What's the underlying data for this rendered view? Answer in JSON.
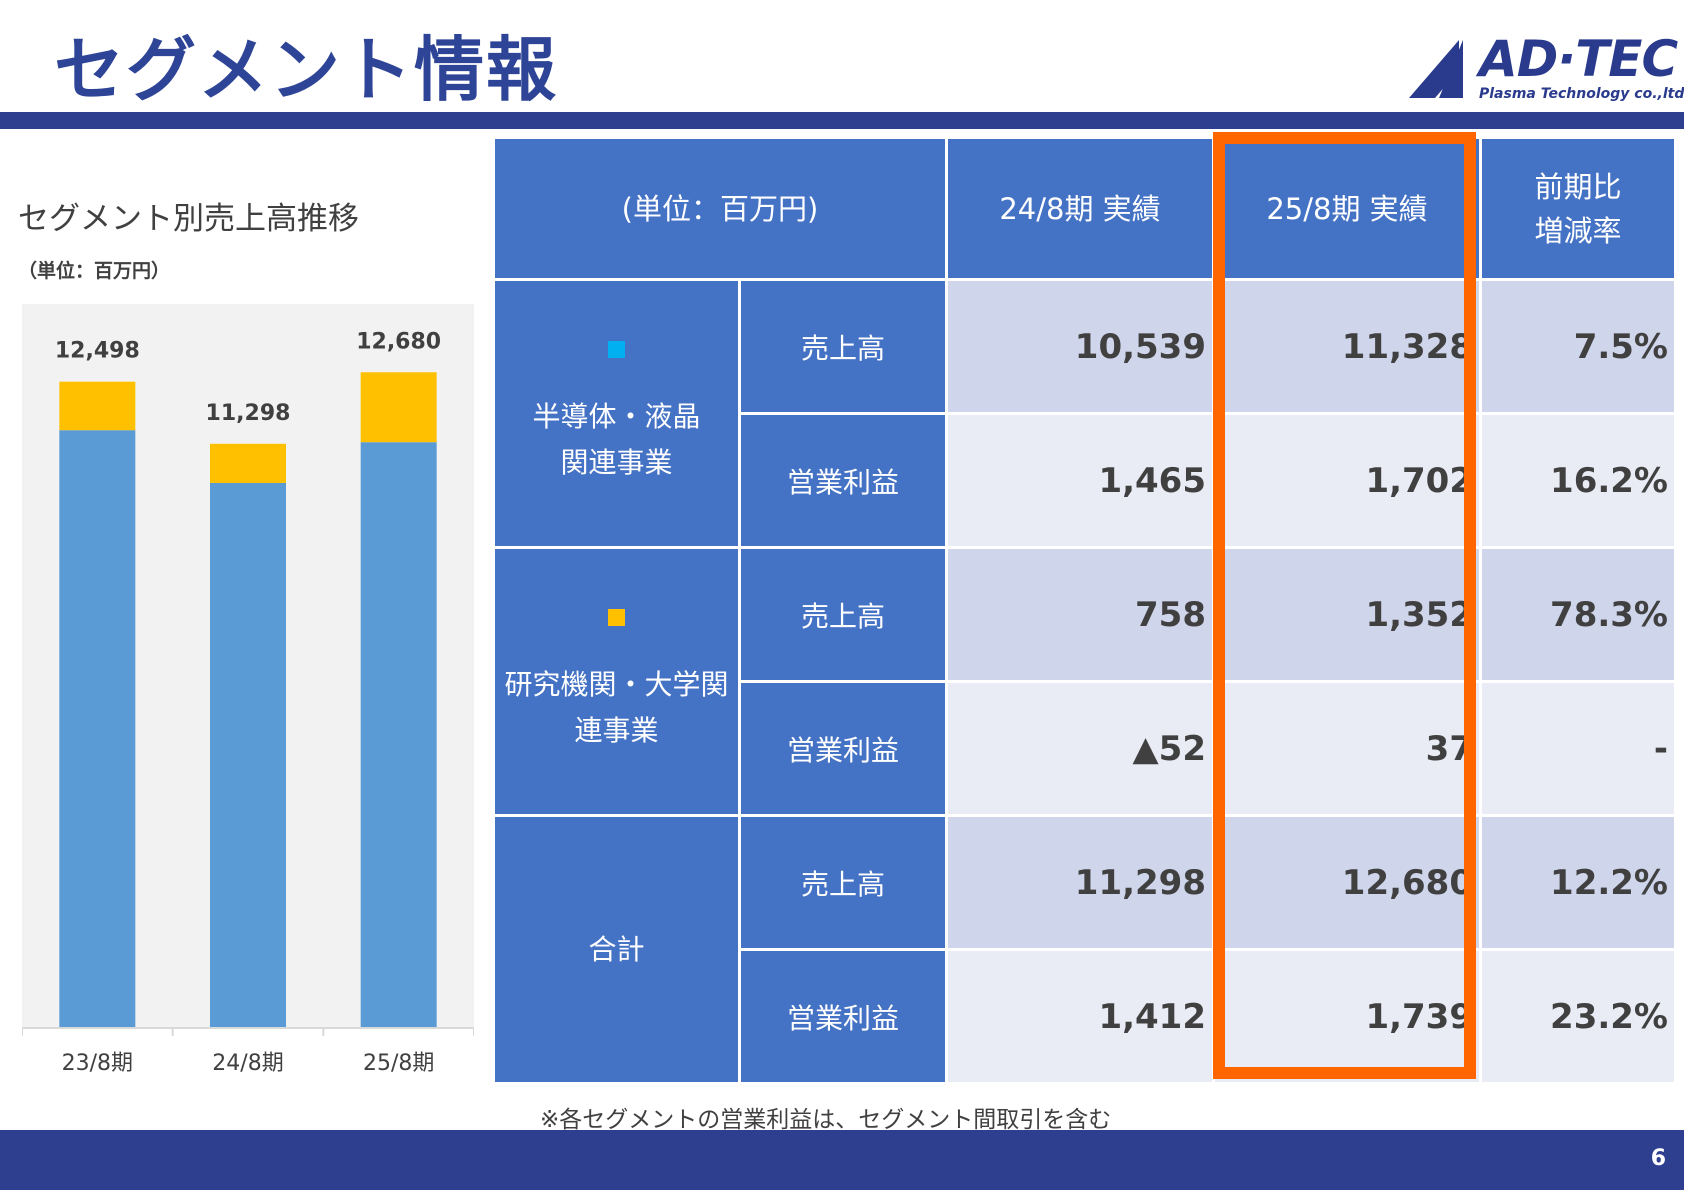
{
  "page_title": "セグメント情報",
  "logo": {
    "wordmark": "AD·TEC",
    "subline": "Plasma Technology co.,ltd."
  },
  "chart_data": {
    "type": "bar",
    "stacked": true,
    "title": "セグメント別売上高推移",
    "unit_label": "（単位：百万円）",
    "categories": [
      "23/8期",
      "24/8期",
      "25/8期"
    ],
    "series": [
      {
        "values": [
          11560,
          10539,
          11328
        ],
        "color": "#5b9bd5"
      },
      {
        "values": [
          938,
          758,
          1352
        ],
        "color": "#ffc000"
      }
    ],
    "totals": [
      "12,498",
      "11,298",
      "12,680"
    ],
    "ylim": [
      0,
      14000
    ],
    "grid": false
  },
  "table": {
    "unit_header": "(単位：百万円)",
    "col_prev": "24/8期 実績",
    "col_curr": "25/8期 実績",
    "col_change_line1": "前期比",
    "col_change_line2": "増減率",
    "segments": [
      {
        "square_color": "#00b0f0",
        "name_line1": "半導体・液晶",
        "name_line2": "関連事業",
        "rows": [
          {
            "metric": "売上高",
            "prev": "10,539",
            "curr": "11,328",
            "change": "7.5%"
          },
          {
            "metric": "営業利益",
            "prev": "1,465",
            "curr": "1,702",
            "change": "16.2%"
          }
        ]
      },
      {
        "square_color": "#ffc000",
        "name_line1": "研究機関・大学関",
        "name_line2": "連事業",
        "rows": [
          {
            "metric": "売上高",
            "prev": "758",
            "curr": "1,352",
            "change": "78.3%"
          },
          {
            "metric": "営業利益",
            "prev": "▲52",
            "curr": "37",
            "change": "-"
          }
        ]
      },
      {
        "name_line1": "合計",
        "rows": [
          {
            "metric": "売上高",
            "prev": "11,298",
            "curr": "12,680",
            "change": "12.2%"
          },
          {
            "metric": "営業利益",
            "prev": "1,412",
            "curr": "1,739",
            "change": "23.2%"
          }
        ]
      }
    ]
  },
  "highlight_color": "#ff6600",
  "footnote": "※各セグメントの営業利益は、セグメント間取引を含む",
  "page_number": "6"
}
